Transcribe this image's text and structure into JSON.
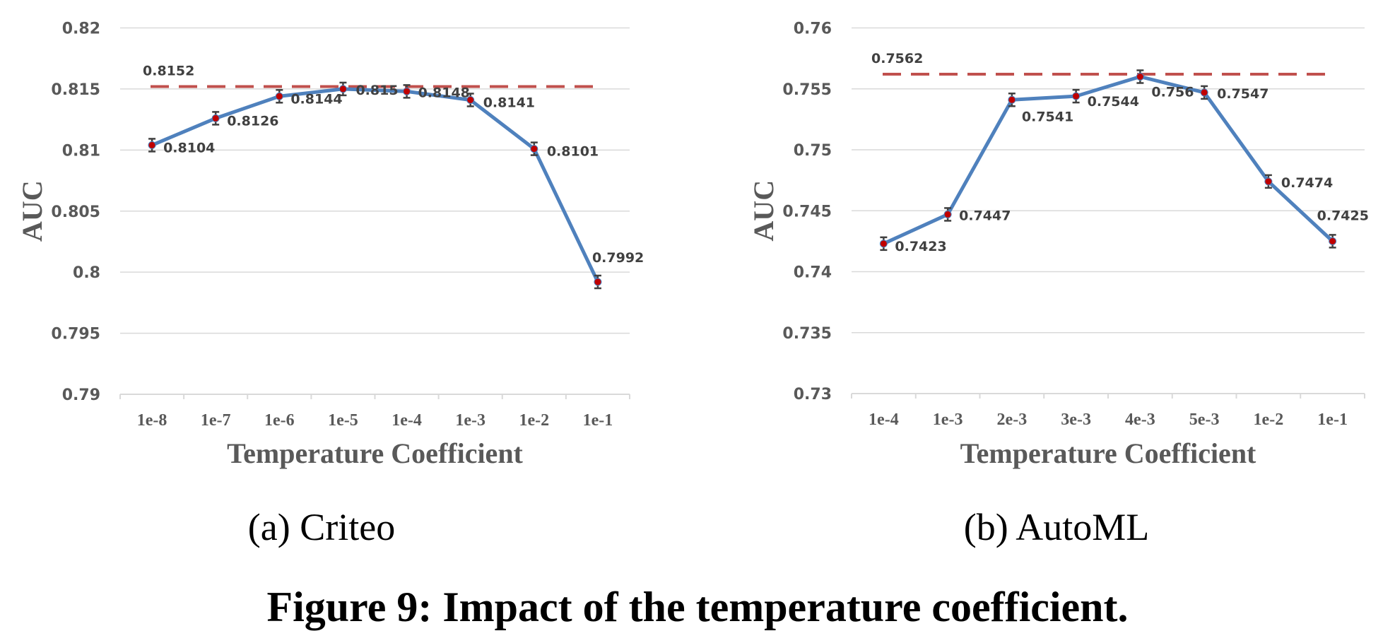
{
  "figure_title": "Figure 9: Impact of the temperature coefficient.",
  "colors": {
    "line": "#4f81bd",
    "marker": "#c00000",
    "baseline": "#c0504d",
    "errorbar": "#404040",
    "grid": "#d9d9d9"
  },
  "chart_data": [
    {
      "type": "line",
      "caption": "(a)  Criteo",
      "xlabel": "Temperature Coefficient",
      "ylabel": "AUC",
      "categories": [
        "1e-8",
        "1e-7",
        "1e-6",
        "1e-5",
        "1e-4",
        "1e-3",
        "1e-2",
        "1e-1"
      ],
      "values": [
        0.8104,
        0.8126,
        0.8144,
        0.815,
        0.8148,
        0.8141,
        0.8101,
        0.7992
      ],
      "data_labels": [
        "0.8104",
        "0.8126",
        "0.8144",
        "0.815",
        "0.8148",
        "0.8141",
        "0.8101",
        "0.7992"
      ],
      "baseline": {
        "value": 0.8152,
        "label": "0.8152",
        "style": "dashed"
      },
      "ylim": [
        0.79,
        0.82
      ],
      "yticks": [
        "0.82",
        "0.815",
        "0.81",
        "0.805",
        "0.8",
        "0.795",
        "0.79"
      ],
      "grid": true,
      "error_bars": true
    },
    {
      "type": "line",
      "caption": "(b)  AutoML",
      "xlabel": "Temperature Coefficient",
      "ylabel": "AUC",
      "categories": [
        "1e-4",
        "1e-3",
        "2e-3",
        "3e-3",
        "4e-3",
        "5e-3",
        "1e-2",
        "1e-1"
      ],
      "values": [
        0.7423,
        0.7447,
        0.7541,
        0.7544,
        0.756,
        0.7547,
        0.7474,
        0.7425
      ],
      "data_labels": [
        "0.7423",
        "0.7447",
        "0.7541",
        "0.7544",
        "0.756",
        "0.7547",
        "0.7474",
        "0.7425"
      ],
      "baseline": {
        "value": 0.7562,
        "label": "0.7562",
        "style": "dashed"
      },
      "ylim": [
        0.73,
        0.76
      ],
      "yticks": [
        "0.76",
        "0.755",
        "0.75",
        "0.745",
        "0.74",
        "0.735",
        "0.73"
      ],
      "grid": true,
      "error_bars": true
    }
  ]
}
